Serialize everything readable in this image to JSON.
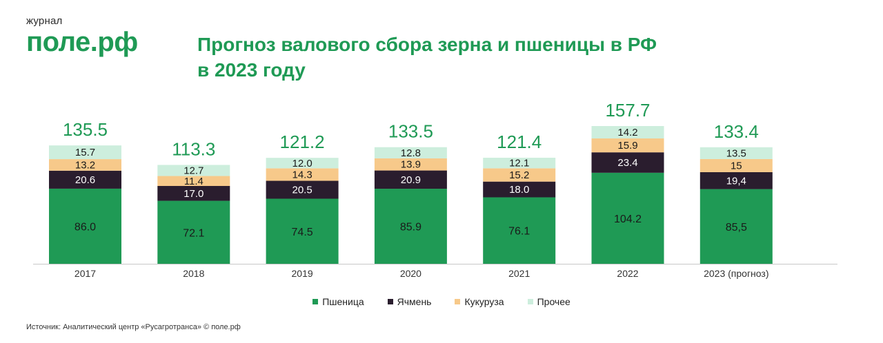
{
  "brand": {
    "top": "журнал",
    "name": "поле.рф"
  },
  "title": {
    "line1": "Прогноз валового сбора зерна и пшеницы в РФ",
    "line2": "в 2023 году"
  },
  "colors": {
    "Пшеница": "#1f9a55",
    "Ячмень": "#2a1d2e",
    "Кукуруза": "#f7c98a",
    "Прочее": "#cdeedd",
    "total": "#1f9a55"
  },
  "chart_data": {
    "type": "bar",
    "stacked": true,
    "categories": [
      "2017",
      "2018",
      "2019",
      "2020",
      "2021",
      "2022",
      "2023 (прогноз)"
    ],
    "series": [
      {
        "name": "Пшеница",
        "values": [
          86.0,
          72.1,
          74.5,
          85.9,
          76.1,
          104.2,
          85.5
        ],
        "labels": [
          "86.0",
          "72.1",
          "74.5",
          "85.9",
          "76.1",
          "104.2",
          "85,5"
        ]
      },
      {
        "name": "Ячмень",
        "values": [
          20.6,
          17.0,
          20.5,
          20.9,
          18.0,
          23.4,
          19.4
        ],
        "labels": [
          "20.6",
          "17.0",
          "20.5",
          "20.9",
          "18.0",
          "23.4",
          "19,4"
        ]
      },
      {
        "name": "Кукуруза",
        "values": [
          13.2,
          11.4,
          14.3,
          13.9,
          15.2,
          15.9,
          15
        ],
        "labels": [
          "13.2",
          "11.4",
          "14.3",
          "13.9",
          "15.2",
          "15.9",
          "15"
        ]
      },
      {
        "name": "Прочее",
        "values": [
          15.7,
          12.7,
          12.0,
          12.8,
          12.1,
          14.2,
          13.5
        ],
        "labels": [
          "15.7",
          "12.7",
          "12.0",
          "12.8",
          "12.1",
          "14.2",
          "13.5"
        ]
      }
    ],
    "totals": [
      "135.5",
      "113.3",
      "121.2",
      "133.5",
      "121.4",
      "157.7",
      "133.4"
    ],
    "ylim": [
      0,
      157.7
    ],
    "legend_position": "bottom-center",
    "grid": false
  },
  "legend": [
    "Пшеница",
    "Ячмень",
    "Кукуруза",
    "Прочее"
  ],
  "source": "Источник: Аналитический центр «Русагротранса» © поле.рф"
}
